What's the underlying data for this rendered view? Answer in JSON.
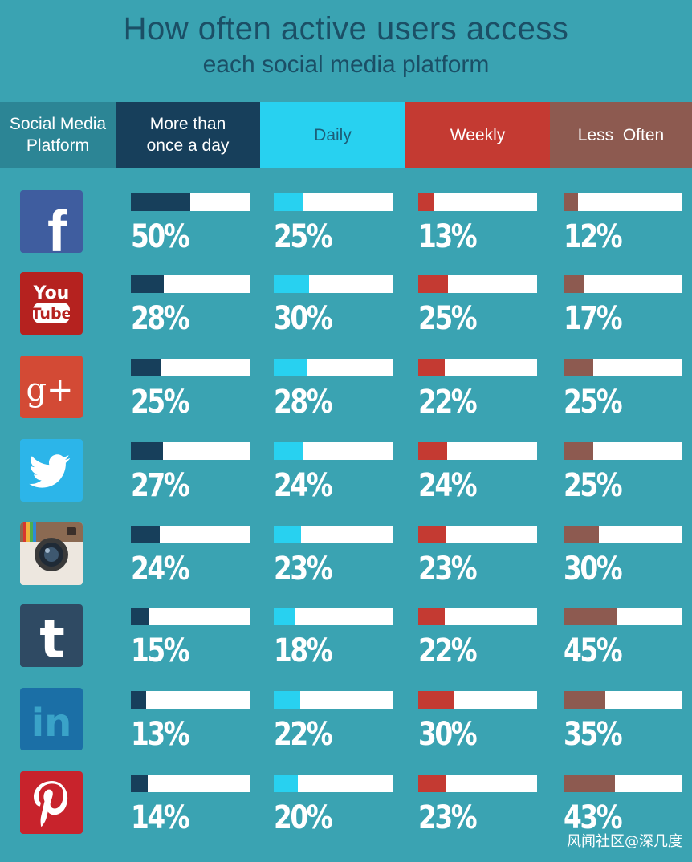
{
  "title": "How often active users access",
  "subtitle": "each social media platform",
  "header": {
    "platform_label": "Social Media\nPlatform"
  },
  "chart_data": {
    "type": "bar",
    "title": "How often active users access each social media platform",
    "categories": [
      "More than once a day",
      "Daily",
      "Weekly",
      "Less  Often"
    ],
    "category_labels": [
      "More than\nonce a day",
      "Daily",
      "Weekly",
      "Less  Often"
    ],
    "colors": [
      "#173f5b",
      "#28d1f0",
      "#c43a32",
      "#8d5a50"
    ],
    "header_colors": [
      "#173f5b",
      "#28d1f0",
      "#c43a32",
      "#8d5a50"
    ],
    "platforms": [
      {
        "name": "facebook-icon",
        "values": [
          50,
          25,
          13,
          12
        ],
        "labels": [
          "50%",
          "25%",
          "13%",
          "12%"
        ]
      },
      {
        "name": "youtube-icon",
        "values": [
          28,
          30,
          25,
          17
        ],
        "labels": [
          "28%",
          "30%",
          "25%",
          "17%"
        ]
      },
      {
        "name": "google-plus-icon",
        "values": [
          25,
          28,
          22,
          25
        ],
        "labels": [
          "25%",
          "28%",
          "22%",
          "25%"
        ]
      },
      {
        "name": "twitter-icon",
        "values": [
          27,
          24,
          24,
          25
        ],
        "labels": [
          "27%",
          "24%",
          "24%",
          "25%"
        ]
      },
      {
        "name": "instagram-icon",
        "values": [
          24,
          23,
          23,
          30
        ],
        "labels": [
          "24%",
          "23%",
          "23%",
          "30%"
        ]
      },
      {
        "name": "tumblr-icon",
        "values": [
          15,
          18,
          22,
          45
        ],
        "labels": [
          "15%",
          "18%",
          "22%",
          "45%"
        ]
      },
      {
        "name": "linkedin-icon",
        "values": [
          13,
          22,
          30,
          35
        ],
        "labels": [
          "13%",
          "22%",
          "30%",
          "35%"
        ]
      },
      {
        "name": "pinterest-icon",
        "values": [
          14,
          20,
          23,
          43
        ],
        "labels": [
          "14%",
          "20%",
          "23%",
          "43%"
        ]
      }
    ],
    "ylim": [
      0,
      100
    ]
  },
  "logos": {
    "youtube_top": "You",
    "youtube_bottom": "Tube",
    "google_plus": "g+",
    "facebook": "f",
    "tumblr": "t",
    "linkedin": "in"
  },
  "watermark": "风闻社区@深几度"
}
